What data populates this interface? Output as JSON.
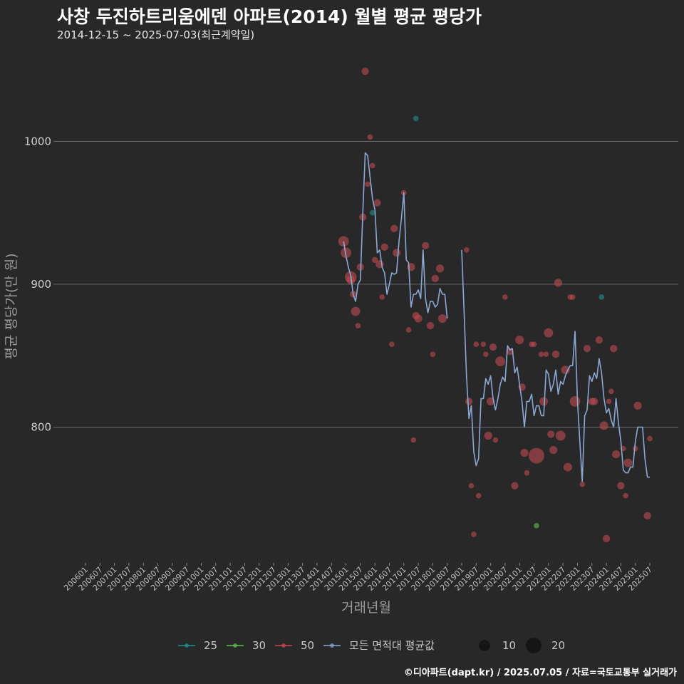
{
  "header": {
    "title": "사창 두진하트리움에덴 아파트(2014) 월별 평균 평당가",
    "subtitle": "2014-12-15 ~ 2025-07-03(최근계약일)"
  },
  "footer": {
    "caption": "©디아파트(dapt.kr) / 2025.07.05 / 자료=국토교통부 실거래가"
  },
  "colors": {
    "background": "#282828",
    "grid": "#6a6a6a",
    "series_25": "#1f8f8f",
    "series_30": "#5fbf4f",
    "series_50": "#c04a50",
    "average_line": "#8aa8d4"
  },
  "chart_data": {
    "type": "line+scatter",
    "title": "사창 두진하트리움에덴 아파트(2014) 월별 평균 평당가",
    "xlabel": "거래년월",
    "ylabel": "평균 평당가(만 원)",
    "ylim": [
      705,
      1065
    ],
    "yticks": [
      800,
      900,
      1000
    ],
    "ytick_labels": [
      "800",
      "900",
      "1000"
    ],
    "x_start": "2006-01",
    "x_end": "2025-07",
    "xtick_labels": [
      "200601",
      "200607",
      "200701",
      "200707",
      "200801",
      "200807",
      "200901",
      "200907",
      "201001",
      "201007",
      "201101",
      "201107",
      "201201",
      "201207",
      "201301",
      "201307",
      "201401",
      "201407",
      "201501",
      "201507",
      "201601",
      "201607",
      "201701",
      "201707",
      "201801",
      "201807",
      "201901",
      "201907",
      "202001",
      "202007",
      "202101",
      "202107",
      "202201",
      "202207",
      "202301",
      "202307",
      "202401",
      "202407",
      "202501",
      "202507"
    ],
    "legend": {
      "color_title": "",
      "items": [
        {
          "label": "25",
          "key": "series_25"
        },
        {
          "label": "30",
          "key": "series_30"
        },
        {
          "label": "50",
          "key": "series_50"
        },
        {
          "label": "모든 면적대 평균값",
          "key": "average_line"
        }
      ],
      "size_items": [
        {
          "label": "10",
          "size": 10
        },
        {
          "label": "20",
          "size": 20
        }
      ]
    },
    "average_line": [
      [
        "2014-12",
        930
      ],
      [
        "2015-01",
        920
      ],
      [
        "2015-02",
        912
      ],
      [
        "2015-03",
        906
      ],
      [
        "2015-04",
        893
      ],
      [
        "2015-05",
        888
      ],
      [
        "2015-06",
        900
      ],
      [
        "2015-07",
        903
      ],
      [
        "2015-08",
        950
      ],
      [
        "2015-09",
        992
      ],
      [
        "2015-10",
        990
      ],
      [
        "2015-11",
        975
      ],
      [
        "2015-12",
        960
      ],
      [
        "2016-01",
        952
      ],
      [
        "2016-02",
        922
      ],
      [
        "2016-03",
        924
      ],
      [
        "2016-04",
        912
      ],
      [
        "2016-05",
        908
      ],
      [
        "2016-06",
        893
      ],
      [
        "2016-07",
        900
      ],
      [
        "2016-08",
        908
      ],
      [
        "2016-09",
        907
      ],
      [
        "2016-10",
        908
      ],
      [
        "2016-11",
        930
      ],
      [
        "2016-12",
        946
      ],
      [
        "2017-01",
        964
      ],
      [
        "2017-02",
        917
      ],
      [
        "2017-03",
        915
      ],
      [
        "2017-04",
        884
      ],
      [
        "2017-05",
        893
      ],
      [
        "2017-06",
        893
      ],
      [
        "2017-07",
        896
      ],
      [
        "2017-08",
        890
      ],
      [
        "2017-09",
        924
      ],
      [
        "2017-10",
        890
      ],
      [
        "2017-11",
        880
      ],
      [
        "2017-12",
        888
      ],
      [
        "2018-01",
        888
      ],
      [
        "2018-02",
        884
      ],
      [
        "2018-03",
        886
      ],
      [
        "2018-04",
        897
      ],
      [
        "2018-05",
        893
      ],
      [
        "2018-06",
        893
      ],
      [
        "2018-07",
        876
      ],
      null,
      [
        "2019-01",
        924
      ],
      [
        "2019-02",
        880
      ],
      [
        "2019-03",
        835
      ],
      [
        "2019-04",
        806
      ],
      [
        "2019-05",
        815
      ],
      [
        "2019-06",
        783
      ],
      [
        "2019-07",
        773
      ],
      [
        "2019-08",
        778
      ],
      [
        "2019-09",
        820
      ],
      [
        "2019-10",
        820
      ],
      [
        "2019-11",
        834
      ],
      [
        "2019-12",
        830
      ],
      [
        "2020-01",
        836
      ],
      [
        "2020-02",
        820
      ],
      [
        "2020-03",
        812
      ],
      [
        "2020-04",
        820
      ],
      [
        "2020-05",
        830
      ],
      [
        "2020-06",
        835
      ],
      [
        "2020-07",
        832
      ],
      [
        "2020-08",
        857
      ],
      [
        "2020-09",
        854
      ],
      [
        "2020-10",
        855
      ],
      [
        "2020-11",
        838
      ],
      [
        "2020-12",
        842
      ],
      [
        "2021-01",
        830
      ],
      [
        "2021-02",
        818
      ],
      [
        "2021-03",
        800
      ],
      [
        "2021-04",
        818
      ],
      [
        "2021-05",
        818
      ],
      [
        "2021-06",
        823
      ],
      [
        "2021-07",
        808
      ],
      [
        "2021-08",
        815
      ],
      [
        "2021-09",
        815
      ],
      [
        "2021-10",
        808
      ],
      [
        "2021-11",
        808
      ],
      [
        "2021-12",
        840
      ],
      [
        "2022-01",
        837
      ],
      [
        "2022-02",
        825
      ],
      [
        "2022-03",
        830
      ],
      [
        "2022-04",
        840
      ],
      [
        "2022-05",
        823
      ],
      [
        "2022-06",
        832
      ],
      [
        "2022-07",
        830
      ],
      [
        "2022-08",
        836
      ],
      [
        "2022-09",
        840
      ],
      [
        "2022-10",
        843
      ],
      [
        "2022-11",
        843
      ],
      [
        "2022-12",
        867
      ],
      [
        "2023-01",
        818
      ],
      [
        "2023-02",
        790
      ],
      [
        "2023-03",
        762
      ],
      [
        "2023-04",
        808
      ],
      [
        "2023-05",
        812
      ],
      [
        "2023-06",
        836
      ],
      [
        "2023-07",
        832
      ],
      [
        "2023-08",
        838
      ],
      [
        "2023-09",
        834
      ],
      [
        "2023-10",
        848
      ],
      [
        "2023-11",
        838
      ],
      [
        "2023-12",
        820
      ],
      [
        "2024-01",
        810
      ],
      [
        "2024-02",
        813
      ],
      [
        "2024-03",
        805
      ],
      [
        "2024-04",
        800
      ],
      [
        "2024-05",
        820
      ],
      [
        "2024-06",
        803
      ],
      [
        "2024-07",
        790
      ],
      [
        "2024-08",
        770
      ],
      [
        "2024-09",
        768
      ],
      [
        "2024-10",
        768
      ],
      [
        "2024-11",
        772
      ],
      [
        "2024-12",
        772
      ],
      [
        "2025-01",
        790
      ],
      [
        "2025-02",
        800
      ],
      [
        "2025-03",
        800
      ],
      [
        "2025-04",
        800
      ],
      [
        "2025-05",
        778
      ],
      [
        "2025-06",
        765
      ],
      [
        "2025-07",
        765
      ]
    ],
    "points": [
      {
        "series": "50",
        "x": "2014-12",
        "y": 930,
        "size": 12
      },
      {
        "series": "50",
        "x": "2015-01",
        "y": 922,
        "size": 12
      },
      {
        "series": "50",
        "x": "2015-03",
        "y": 905,
        "size": 14
      },
      {
        "series": "50",
        "x": "2015-03",
        "y": 903,
        "size": 9
      },
      {
        "series": "50",
        "x": "2015-04",
        "y": 893,
        "size": 6
      },
      {
        "series": "50",
        "x": "2015-05",
        "y": 881,
        "size": 10
      },
      {
        "series": "50",
        "x": "2015-06",
        "y": 871,
        "size": 4
      },
      {
        "series": "50",
        "x": "2015-07",
        "y": 912,
        "size": 7
      },
      {
        "series": "50",
        "x": "2015-08",
        "y": 947,
        "size": 7
      },
      {
        "series": "50",
        "x": "2015-09",
        "y": 1049,
        "size": 7
      },
      {
        "series": "50",
        "x": "2015-10",
        "y": 970,
        "size": 4
      },
      {
        "series": "50",
        "x": "2015-11",
        "y": 1003,
        "size": 4
      },
      {
        "series": "25",
        "x": "2015-12",
        "y": 950,
        "size": 4
      },
      {
        "series": "50",
        "x": "2015-12",
        "y": 983,
        "size": 4
      },
      {
        "series": "50",
        "x": "2016-01",
        "y": 917,
        "size": 5
      },
      {
        "series": "50",
        "x": "2016-02",
        "y": 957,
        "size": 7
      },
      {
        "series": "50",
        "x": "2016-03",
        "y": 914,
        "size": 8
      },
      {
        "series": "50",
        "x": "2016-04",
        "y": 891,
        "size": 4
      },
      {
        "series": "50",
        "x": "2016-05",
        "y": 926,
        "size": 7
      },
      {
        "series": "50",
        "x": "2016-08",
        "y": 858,
        "size": 4
      },
      {
        "series": "50",
        "x": "2016-09",
        "y": 939,
        "size": 7
      },
      {
        "series": "50",
        "x": "2016-10",
        "y": 922,
        "size": 8
      },
      {
        "series": "50",
        "x": "2017-01",
        "y": 964,
        "size": 4
      },
      {
        "series": "50",
        "x": "2017-03",
        "y": 868,
        "size": 4
      },
      {
        "series": "50",
        "x": "2017-04",
        "y": 912,
        "size": 8
      },
      {
        "series": "50",
        "x": "2017-05",
        "y": 791,
        "size": 4
      },
      {
        "series": "25",
        "x": "2017-06",
        "y": 1016,
        "size": 4
      },
      {
        "series": "50",
        "x": "2017-06",
        "y": 878,
        "size": 7
      },
      {
        "series": "50",
        "x": "2017-07",
        "y": 876,
        "size": 8
      },
      {
        "series": "50",
        "x": "2017-10",
        "y": 927,
        "size": 7
      },
      {
        "series": "50",
        "x": "2017-12",
        "y": 871,
        "size": 7
      },
      {
        "series": "50",
        "x": "2018-01",
        "y": 851,
        "size": 4
      },
      {
        "series": "50",
        "x": "2018-02",
        "y": 904,
        "size": 7
      },
      {
        "series": "50",
        "x": "2018-04",
        "y": 911,
        "size": 8
      },
      {
        "series": "50",
        "x": "2018-05",
        "y": 876,
        "size": 9
      },
      {
        "series": "50",
        "x": "2019-03",
        "y": 924,
        "size": 4
      },
      {
        "series": "50",
        "x": "2019-04",
        "y": 818,
        "size": 7
      },
      {
        "series": "50",
        "x": "2019-05",
        "y": 759,
        "size": 4
      },
      {
        "series": "50",
        "x": "2019-06",
        "y": 725,
        "size": 4
      },
      {
        "series": "50",
        "x": "2019-07",
        "y": 858,
        "size": 4
      },
      {
        "series": "50",
        "x": "2019-08",
        "y": 752,
        "size": 4
      },
      {
        "series": "50",
        "x": "2019-10",
        "y": 858,
        "size": 4
      },
      {
        "series": "50",
        "x": "2019-11",
        "y": 851,
        "size": 4
      },
      {
        "series": "50",
        "x": "2019-12",
        "y": 794,
        "size": 8
      },
      {
        "series": "50",
        "x": "2020-01",
        "y": 818,
        "size": 8
      },
      {
        "series": "50",
        "x": "2020-02",
        "y": 856,
        "size": 7
      },
      {
        "series": "50",
        "x": "2020-03",
        "y": 791,
        "size": 4
      },
      {
        "series": "50",
        "x": "2020-05",
        "y": 846,
        "size": 11
      },
      {
        "series": "50",
        "x": "2020-07",
        "y": 891,
        "size": 4
      },
      {
        "series": "50",
        "x": "2020-09",
        "y": 853,
        "size": 7
      },
      {
        "series": "50",
        "x": "2020-11",
        "y": 759,
        "size": 7
      },
      {
        "series": "50",
        "x": "2021-01",
        "y": 861,
        "size": 9
      },
      {
        "series": "50",
        "x": "2021-02",
        "y": 828,
        "size": 7
      },
      {
        "series": "50",
        "x": "2021-03",
        "y": 782,
        "size": 8
      },
      {
        "series": "50",
        "x": "2021-04",
        "y": 768,
        "size": 4
      },
      {
        "series": "50",
        "x": "2021-06",
        "y": 858,
        "size": 4
      },
      {
        "series": "50",
        "x": "2021-07",
        "y": 858,
        "size": 4
      },
      {
        "series": "50",
        "x": "2021-08",
        "y": 780,
        "size": 20
      },
      {
        "series": "30",
        "x": "2021-08",
        "y": 731,
        "size": 4
      },
      {
        "series": "50",
        "x": "2021-10",
        "y": 851,
        "size": 4
      },
      {
        "series": "50",
        "x": "2021-11",
        "y": 818,
        "size": 9
      },
      {
        "series": "50",
        "x": "2021-12",
        "y": 851,
        "size": 4
      },
      {
        "series": "50",
        "x": "2022-01",
        "y": 866,
        "size": 10
      },
      {
        "series": "50",
        "x": "2022-02",
        "y": 795,
        "size": 7
      },
      {
        "series": "50",
        "x": "2022-03",
        "y": 784,
        "size": 8
      },
      {
        "series": "50",
        "x": "2022-04",
        "y": 851,
        "size": 7
      },
      {
        "series": "50",
        "x": "2022-05",
        "y": 901,
        "size": 8
      },
      {
        "series": "50",
        "x": "2022-06",
        "y": 794,
        "size": 11
      },
      {
        "series": "50",
        "x": "2022-08",
        "y": 840,
        "size": 9
      },
      {
        "series": "50",
        "x": "2022-09",
        "y": 772,
        "size": 9
      },
      {
        "series": "50",
        "x": "2022-10",
        "y": 891,
        "size": 4
      },
      {
        "series": "50",
        "x": "2022-11",
        "y": 891,
        "size": 4
      },
      {
        "series": "50",
        "x": "2022-12",
        "y": 818,
        "size": 12
      },
      {
        "series": "50",
        "x": "2023-03",
        "y": 760,
        "size": 4
      },
      {
        "series": "50",
        "x": "2023-05",
        "y": 855,
        "size": 7
      },
      {
        "series": "50",
        "x": "2023-07",
        "y": 818,
        "size": 7
      },
      {
        "series": "50",
        "x": "2023-08",
        "y": 818,
        "size": 7
      },
      {
        "series": "50",
        "x": "2023-10",
        "y": 861,
        "size": 7
      },
      {
        "series": "25",
        "x": "2023-11",
        "y": 891,
        "size": 4
      },
      {
        "series": "50",
        "x": "2023-12",
        "y": 801,
        "size": 9
      },
      {
        "series": "50",
        "x": "2024-01",
        "y": 722,
        "size": 7
      },
      {
        "series": "50",
        "x": "2024-02",
        "y": 818,
        "size": 4
      },
      {
        "series": "50",
        "x": "2024-03",
        "y": 825,
        "size": 4
      },
      {
        "series": "50",
        "x": "2024-04",
        "y": 855,
        "size": 7
      },
      {
        "series": "50",
        "x": "2024-05",
        "y": 781,
        "size": 8
      },
      {
        "series": "50",
        "x": "2024-07",
        "y": 759,
        "size": 7
      },
      {
        "series": "50",
        "x": "2024-08",
        "y": 785,
        "size": 4
      },
      {
        "series": "50",
        "x": "2024-09",
        "y": 752,
        "size": 4
      },
      {
        "series": "50",
        "x": "2024-10",
        "y": 775,
        "size": 9
      },
      {
        "series": "50",
        "x": "2025-01",
        "y": 785,
        "size": 4
      },
      {
        "series": "50",
        "x": "2025-02",
        "y": 815,
        "size": 8
      },
      {
        "series": "50",
        "x": "2025-06",
        "y": 738,
        "size": 7
      },
      {
        "series": "50",
        "x": "2025-07",
        "y": 792,
        "size": 4
      }
    ]
  }
}
